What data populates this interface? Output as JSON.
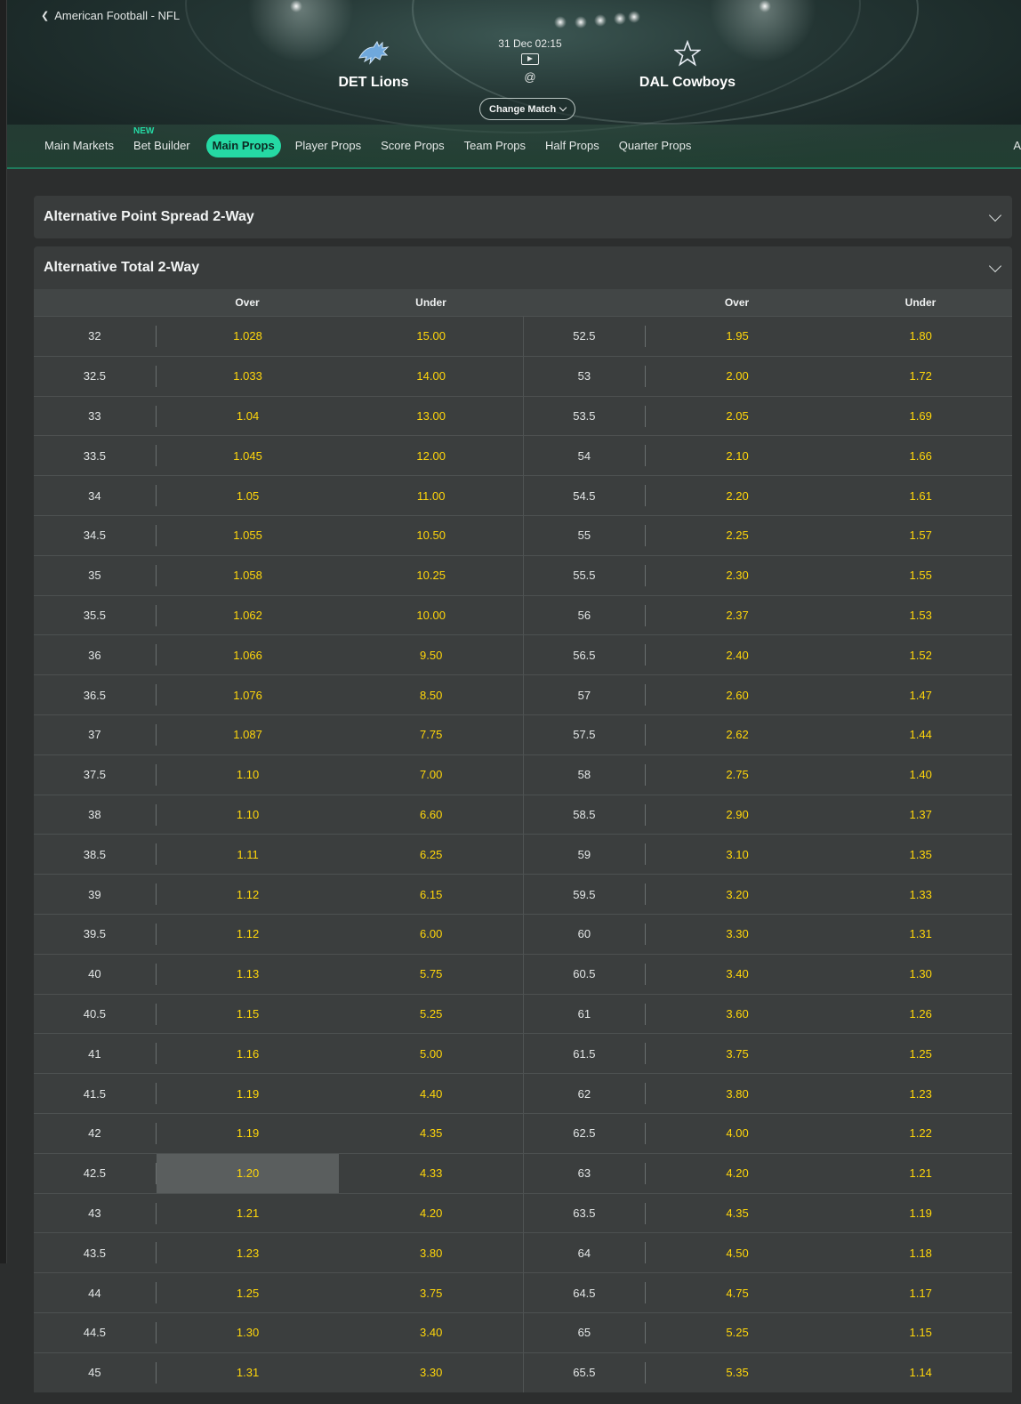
{
  "breadcrumb": "American Football - NFL",
  "match": {
    "home": "DET Lions",
    "away": "DAL Cowboys",
    "time": "31 Dec 02:15",
    "at": "@",
    "change_match": "Change Match"
  },
  "tabs": [
    {
      "label": "Main Markets",
      "badge": ""
    },
    {
      "label": "Bet Builder",
      "badge": "NEW"
    },
    {
      "label": "Main Props",
      "badge": "",
      "active": true
    },
    {
      "label": "Player Props",
      "badge": ""
    },
    {
      "label": "Score Props",
      "badge": ""
    },
    {
      "label": "Team Props",
      "badge": ""
    },
    {
      "label": "Half Props",
      "badge": ""
    },
    {
      "label": "Quarter Props",
      "badge": ""
    }
  ],
  "tabs_overflow": "A",
  "markets": {
    "spread_title": "Alternative Point Spread 2-Way",
    "total_title": "Alternative Total 2-Way",
    "headers": {
      "over": "Over",
      "under": "Under"
    },
    "rows": [
      [
        "32",
        "1.028",
        "15.00",
        "52.5",
        "1.95",
        "1.80"
      ],
      [
        "32.5",
        "1.033",
        "14.00",
        "53",
        "2.00",
        "1.72"
      ],
      [
        "33",
        "1.04",
        "13.00",
        "53.5",
        "2.05",
        "1.69"
      ],
      [
        "33.5",
        "1.045",
        "12.00",
        "54",
        "2.10",
        "1.66"
      ],
      [
        "34",
        "1.05",
        "11.00",
        "54.5",
        "2.20",
        "1.61"
      ],
      [
        "34.5",
        "1.055",
        "10.50",
        "55",
        "2.25",
        "1.57"
      ],
      [
        "35",
        "1.058",
        "10.25",
        "55.5",
        "2.30",
        "1.55"
      ],
      [
        "35.5",
        "1.062",
        "10.00",
        "56",
        "2.37",
        "1.53"
      ],
      [
        "36",
        "1.066",
        "9.50",
        "56.5",
        "2.40",
        "1.52"
      ],
      [
        "36.5",
        "1.076",
        "8.50",
        "57",
        "2.60",
        "1.47"
      ],
      [
        "37",
        "1.087",
        "7.75",
        "57.5",
        "2.62",
        "1.44"
      ],
      [
        "37.5",
        "1.10",
        "7.00",
        "58",
        "2.75",
        "1.40"
      ],
      [
        "38",
        "1.10",
        "6.60",
        "58.5",
        "2.90",
        "1.37"
      ],
      [
        "38.5",
        "1.11",
        "6.25",
        "59",
        "3.10",
        "1.35"
      ],
      [
        "39",
        "1.12",
        "6.15",
        "59.5",
        "3.20",
        "1.33"
      ],
      [
        "39.5",
        "1.12",
        "6.00",
        "60",
        "3.30",
        "1.31"
      ],
      [
        "40",
        "1.13",
        "5.75",
        "60.5",
        "3.40",
        "1.30"
      ],
      [
        "40.5",
        "1.15",
        "5.25",
        "61",
        "3.60",
        "1.26"
      ],
      [
        "41",
        "1.16",
        "5.00",
        "61.5",
        "3.75",
        "1.25"
      ],
      [
        "41.5",
        "1.19",
        "4.40",
        "62",
        "3.80",
        "1.23"
      ],
      [
        "42",
        "1.19",
        "4.35",
        "62.5",
        "4.00",
        "1.22"
      ],
      [
        "42.5",
        "1.20",
        "4.33",
        "63",
        "4.20",
        "1.21"
      ],
      [
        "43",
        "1.21",
        "4.20",
        "63.5",
        "4.35",
        "1.19"
      ],
      [
        "43.5",
        "1.23",
        "3.80",
        "64",
        "4.50",
        "1.18"
      ],
      [
        "44",
        "1.25",
        "3.75",
        "64.5",
        "4.75",
        "1.17"
      ],
      [
        "44.5",
        "1.30",
        "3.40",
        "65",
        "5.25",
        "1.15"
      ],
      [
        "45",
        "1.31",
        "3.30",
        "65.5",
        "5.35",
        "1.14"
      ]
    ],
    "highlighted_row": 21
  },
  "colors": {
    "accent": "#25d9a4",
    "odds": "#ffd60a",
    "panel": "#393c3c"
  }
}
